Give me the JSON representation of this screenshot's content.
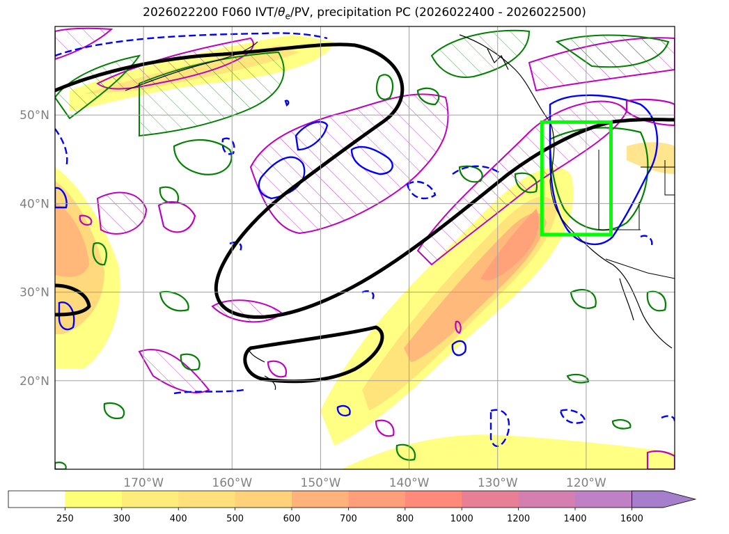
{
  "title": {
    "prefix": "2026022200 F060 IVT/",
    "theta": "θ",
    "theta_sub": "e",
    "suffix": "/PV, precipitation PC (2026022400 - 2026022500)"
  },
  "map": {
    "lon_min": -180,
    "lon_max": -110,
    "lat_min": 10,
    "lat_max": 60,
    "lon_ticks": [
      {
        "value": -170,
        "label": "170°W"
      },
      {
        "value": -160,
        "label": "160°W"
      },
      {
        "value": -150,
        "label": "150°W"
      },
      {
        "value": -140,
        "label": "140°W"
      },
      {
        "value": -130,
        "label": "130°W"
      },
      {
        "value": -120,
        "label": "120°W"
      }
    ],
    "lat_ticks": [
      {
        "value": 20,
        "label": "20°N"
      },
      {
        "value": 30,
        "label": "30°N"
      },
      {
        "value": 40,
        "label": "40°N"
      },
      {
        "value": 50,
        "label": "50°N"
      }
    ],
    "grid": true,
    "highlight_box": {
      "lon_min": -125,
      "lon_max": -117.2,
      "lat_min": 36.5,
      "lat_max": 49.2,
      "color": "#00ff00"
    },
    "colors": {
      "pv": "#000000",
      "theta_e_solid": "#0000ff",
      "precip": "#008000",
      "hatch_region": "#bf00bf",
      "coast": "#000000"
    }
  },
  "colorbar": {
    "levels": [
      "250",
      "300",
      "400",
      "500",
      "600",
      "700",
      "800",
      "1000",
      "1200",
      "1400",
      "1600"
    ],
    "colors": [
      "#ffffff",
      "#ffff77",
      "#ffed7a",
      "#ffe07a",
      "#ffd27a",
      "#ffb27a",
      "#ff9e7a",
      "#ff8a7a",
      "#e97f95",
      "#d47fb0",
      "#bf80c5",
      "#a67fcc"
    ],
    "extend": "max"
  }
}
